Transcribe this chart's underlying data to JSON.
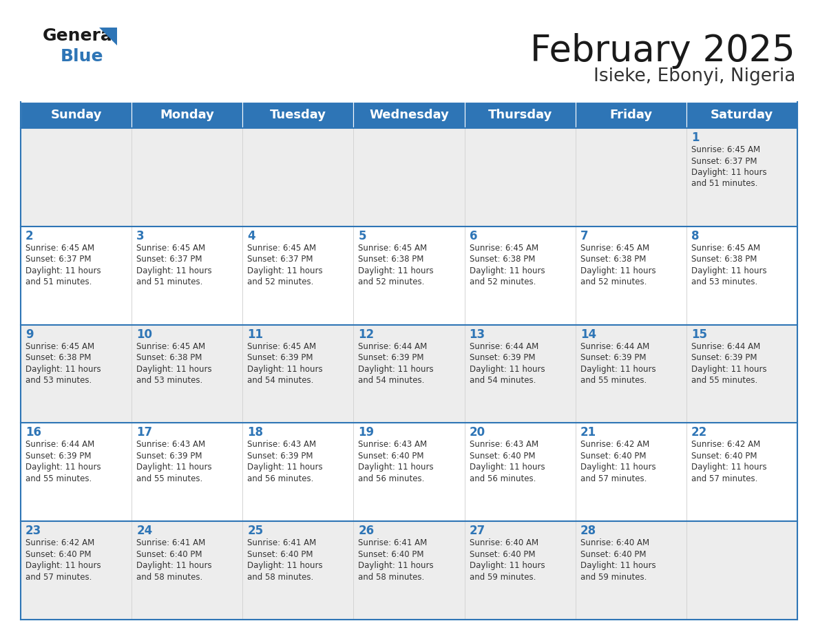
{
  "title": "February 2025",
  "subtitle": "Isieke, Ebonyi, Nigeria",
  "header_color": "#2E75B6",
  "header_text_color": "#FFFFFF",
  "days_of_week": [
    "Sunday",
    "Monday",
    "Tuesday",
    "Wednesday",
    "Thursday",
    "Friday",
    "Saturday"
  ],
  "cell_bg_row0": "#EEEEEE",
  "cell_bg_row1": "#F5F5F5",
  "cell_bg_row2": "#EEEEEE",
  "cell_bg_row3": "#F5F5F5",
  "cell_bg_row4": "#EEEEEE",
  "day_number_color": "#2E75B6",
  "text_color": "#333333",
  "line_color": "#2E75B6",
  "calendar_data": [
    [
      null,
      null,
      null,
      null,
      null,
      null,
      {
        "day": "1",
        "sunrise": "6:45 AM",
        "sunset": "6:37 PM",
        "daylight": "11 hours\nand 51 minutes."
      }
    ],
    [
      {
        "day": "2",
        "sunrise": "6:45 AM",
        "sunset": "6:37 PM",
        "daylight": "11 hours\nand 51 minutes."
      },
      {
        "day": "3",
        "sunrise": "6:45 AM",
        "sunset": "6:37 PM",
        "daylight": "11 hours\nand 51 minutes."
      },
      {
        "day": "4",
        "sunrise": "6:45 AM",
        "sunset": "6:37 PM",
        "daylight": "11 hours\nand 52 minutes."
      },
      {
        "day": "5",
        "sunrise": "6:45 AM",
        "sunset": "6:38 PM",
        "daylight": "11 hours\nand 52 minutes."
      },
      {
        "day": "6",
        "sunrise": "6:45 AM",
        "sunset": "6:38 PM",
        "daylight": "11 hours\nand 52 minutes."
      },
      {
        "day": "7",
        "sunrise": "6:45 AM",
        "sunset": "6:38 PM",
        "daylight": "11 hours\nand 52 minutes."
      },
      {
        "day": "8",
        "sunrise": "6:45 AM",
        "sunset": "6:38 PM",
        "daylight": "11 hours\nand 53 minutes."
      }
    ],
    [
      {
        "day": "9",
        "sunrise": "6:45 AM",
        "sunset": "6:38 PM",
        "daylight": "11 hours\nand 53 minutes."
      },
      {
        "day": "10",
        "sunrise": "6:45 AM",
        "sunset": "6:38 PM",
        "daylight": "11 hours\nand 53 minutes."
      },
      {
        "day": "11",
        "sunrise": "6:45 AM",
        "sunset": "6:39 PM",
        "daylight": "11 hours\nand 54 minutes."
      },
      {
        "day": "12",
        "sunrise": "6:44 AM",
        "sunset": "6:39 PM",
        "daylight": "11 hours\nand 54 minutes."
      },
      {
        "day": "13",
        "sunrise": "6:44 AM",
        "sunset": "6:39 PM",
        "daylight": "11 hours\nand 54 minutes."
      },
      {
        "day": "14",
        "sunrise": "6:44 AM",
        "sunset": "6:39 PM",
        "daylight": "11 hours\nand 55 minutes."
      },
      {
        "day": "15",
        "sunrise": "6:44 AM",
        "sunset": "6:39 PM",
        "daylight": "11 hours\nand 55 minutes."
      }
    ],
    [
      {
        "day": "16",
        "sunrise": "6:44 AM",
        "sunset": "6:39 PM",
        "daylight": "11 hours\nand 55 minutes."
      },
      {
        "day": "17",
        "sunrise": "6:43 AM",
        "sunset": "6:39 PM",
        "daylight": "11 hours\nand 55 minutes."
      },
      {
        "day": "18",
        "sunrise": "6:43 AM",
        "sunset": "6:39 PM",
        "daylight": "11 hours\nand 56 minutes."
      },
      {
        "day": "19",
        "sunrise": "6:43 AM",
        "sunset": "6:40 PM",
        "daylight": "11 hours\nand 56 minutes."
      },
      {
        "day": "20",
        "sunrise": "6:43 AM",
        "sunset": "6:40 PM",
        "daylight": "11 hours\nand 56 minutes."
      },
      {
        "day": "21",
        "sunrise": "6:42 AM",
        "sunset": "6:40 PM",
        "daylight": "11 hours\nand 57 minutes."
      },
      {
        "day": "22",
        "sunrise": "6:42 AM",
        "sunset": "6:40 PM",
        "daylight": "11 hours\nand 57 minutes."
      }
    ],
    [
      {
        "day": "23",
        "sunrise": "6:42 AM",
        "sunset": "6:40 PM",
        "daylight": "11 hours\nand 57 minutes."
      },
      {
        "day": "24",
        "sunrise": "6:41 AM",
        "sunset": "6:40 PM",
        "daylight": "11 hours\nand 58 minutes."
      },
      {
        "day": "25",
        "sunrise": "6:41 AM",
        "sunset": "6:40 PM",
        "daylight": "11 hours\nand 58 minutes."
      },
      {
        "day": "26",
        "sunrise": "6:41 AM",
        "sunset": "6:40 PM",
        "daylight": "11 hours\nand 58 minutes."
      },
      {
        "day": "27",
        "sunrise": "6:40 AM",
        "sunset": "6:40 PM",
        "daylight": "11 hours\nand 59 minutes."
      },
      {
        "day": "28",
        "sunrise": "6:40 AM",
        "sunset": "6:40 PM",
        "daylight": "11 hours\nand 59 minutes."
      },
      null
    ]
  ]
}
